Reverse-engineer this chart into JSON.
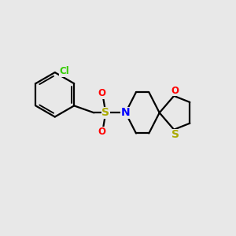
{
  "background_color": "#e8e8e8",
  "fig_size": [
    3.0,
    3.0
  ],
  "dpi": 100,
  "bond_color": "#000000",
  "bond_width": 1.6,
  "atoms": {
    "Cl": {
      "color": "#33cc00",
      "fontsize": 8.5
    },
    "O": {
      "color": "#ff0000",
      "fontsize": 8.5
    },
    "N": {
      "color": "#0000ff",
      "fontsize": 9.5
    },
    "S_sulfonyl": {
      "color": "#aaaa00",
      "fontsize": 9.5
    },
    "S_thia": {
      "color": "#aaaa00",
      "fontsize": 9.5
    }
  },
  "xlim": [
    0,
    10
  ],
  "ylim": [
    0,
    10
  ]
}
